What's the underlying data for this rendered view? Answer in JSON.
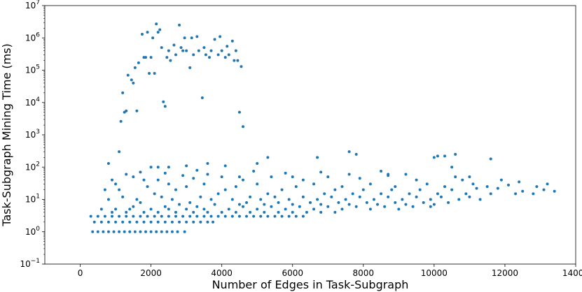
{
  "chart_data": {
    "type": "scatter",
    "title": "",
    "xlabel": "Number of Edges in Task-Subgraph",
    "ylabel": "Task-Subgraph Mining Time (ms)",
    "xlim": [
      -1000,
      14000
    ],
    "ylim": [
      0.1,
      10000000
    ],
    "yscale": "log",
    "xticks": [
      0,
      2000,
      4000,
      6000,
      8000,
      10000,
      12000,
      14000
    ],
    "xtick_labels": [
      "0",
      "2000",
      "4000",
      "6000",
      "8000",
      "10000",
      "12000",
      "14000"
    ],
    "yticks": [
      0.1,
      1,
      10,
      100,
      1000,
      10000,
      100000,
      1000000,
      10000000
    ],
    "ytick_labels": [
      {
        "base": "10",
        "exp": "−1"
      },
      {
        "base": "10",
        "exp": "0"
      },
      {
        "base": "10",
        "exp": "1"
      },
      {
        "base": "10",
        "exp": "2"
      },
      {
        "base": "10",
        "exp": "3"
      },
      {
        "base": "10",
        "exp": "4"
      },
      {
        "base": "10",
        "exp": "5"
      },
      {
        "base": "10",
        "exp": "6"
      },
      {
        "base": "10",
        "exp": "7"
      }
    ],
    "grid": false,
    "legend": "none",
    "marker_color": "#1f77b4",
    "series": [
      {
        "points": [
          [
            300,
            3
          ],
          [
            500,
            3
          ],
          [
            700,
            3
          ],
          [
            900,
            3
          ],
          [
            1100,
            3
          ],
          [
            1300,
            3
          ],
          [
            1500,
            3
          ],
          [
            1700,
            3
          ],
          [
            1900,
            3
          ],
          [
            2100,
            3
          ],
          [
            2300,
            3
          ],
          [
            2500,
            3
          ],
          [
            2700,
            3
          ],
          [
            2900,
            3
          ],
          [
            3100,
            3
          ],
          [
            3300,
            3
          ],
          [
            3500,
            3
          ],
          [
            3700,
            3
          ],
          [
            3900,
            3
          ],
          [
            4100,
            3
          ],
          [
            4300,
            3
          ],
          [
            4500,
            3
          ],
          [
            4700,
            3
          ],
          [
            4900,
            3
          ],
          [
            5100,
            3
          ],
          [
            5300,
            3
          ],
          [
            5500,
            3
          ],
          [
            5700,
            3
          ],
          [
            5900,
            3
          ],
          [
            6100,
            3
          ],
          [
            6300,
            3
          ],
          [
            400,
            2
          ],
          [
            600,
            2
          ],
          [
            800,
            2
          ],
          [
            1000,
            2
          ],
          [
            1200,
            2
          ],
          [
            1400,
            2
          ],
          [
            1600,
            2
          ],
          [
            1800,
            2
          ],
          [
            2000,
            2
          ],
          [
            2200,
            2
          ],
          [
            2400,
            2
          ],
          [
            2600,
            2
          ],
          [
            2800,
            2
          ],
          [
            3000,
            2
          ],
          [
            3200,
            2
          ],
          [
            3400,
            2
          ],
          [
            3600,
            2
          ],
          [
            3750,
            2
          ],
          [
            350,
            1
          ],
          [
            500,
            1
          ],
          [
            650,
            1
          ],
          [
            800,
            1
          ],
          [
            950,
            1
          ],
          [
            1100,
            1
          ],
          [
            1250,
            1
          ],
          [
            1400,
            1
          ],
          [
            1550,
            1
          ],
          [
            1700,
            1
          ],
          [
            1850,
            1
          ],
          [
            2000,
            1
          ],
          [
            2150,
            1
          ],
          [
            2300,
            1
          ],
          [
            2450,
            1
          ],
          [
            2600,
            1
          ],
          [
            2750,
            1
          ],
          [
            2950,
            1
          ],
          [
            900,
            4
          ],
          [
            1300,
            4
          ],
          [
            1800,
            4
          ],
          [
            2200,
            4
          ],
          [
            2700,
            4
          ],
          [
            3200,
            4
          ],
          [
            3600,
            4
          ],
          [
            4000,
            4
          ],
          [
            4400,
            4
          ],
          [
            4800,
            4
          ],
          [
            5200,
            4
          ],
          [
            5600,
            4
          ],
          [
            6000,
            4
          ],
          [
            6400,
            4
          ],
          [
            6800,
            4
          ],
          [
            7200,
            4
          ],
          [
            600,
            5
          ],
          [
            1000,
            5
          ],
          [
            1400,
            5
          ],
          [
            2000,
            5
          ],
          [
            2500,
            5
          ],
          [
            3000,
            5
          ],
          [
            3500,
            5
          ],
          [
            4200,
            5
          ],
          [
            5000,
            5
          ],
          [
            5800,
            5
          ],
          [
            6600,
            5
          ],
          [
            7400,
            5
          ],
          [
            8200,
            5
          ],
          [
            9000,
            5
          ],
          [
            1500,
            6
          ],
          [
            2400,
            6
          ],
          [
            3300,
            6
          ],
          [
            4600,
            6
          ],
          [
            5400,
            6
          ],
          [
            6200,
            6
          ],
          [
            7000,
            6
          ],
          [
            7800,
            6
          ],
          [
            8600,
            6
          ],
          [
            9400,
            6
          ],
          [
            9900,
            6
          ],
          [
            2800,
            7
          ],
          [
            3800,
            7
          ],
          [
            4500,
            7
          ],
          [
            5200,
            7
          ],
          [
            6000,
            7
          ],
          [
            6800,
            7
          ],
          [
            7600,
            7
          ],
          [
            8400,
            7
          ],
          [
            9200,
            7
          ],
          [
            10000,
            7
          ],
          [
            1700,
            8
          ],
          [
            3100,
            8
          ],
          [
            4700,
            8
          ],
          [
            5600,
            8
          ],
          [
            6500,
            8
          ],
          [
            7300,
            8
          ],
          [
            8100,
            8
          ],
          [
            8900,
            8
          ],
          [
            9700,
            8
          ],
          [
            10400,
            8
          ],
          [
            800,
            10
          ],
          [
            1600,
            10
          ],
          [
            2600,
            10
          ],
          [
            3700,
            10
          ],
          [
            4300,
            10
          ],
          [
            5100,
            10
          ],
          [
            5900,
            10
          ],
          [
            6700,
            10
          ],
          [
            7500,
            10
          ],
          [
            8300,
            10
          ],
          [
            9100,
            10
          ],
          [
            9900,
            10
          ],
          [
            10700,
            10
          ],
          [
            11300,
            10
          ],
          [
            1200,
            12
          ],
          [
            2300,
            12
          ],
          [
            3400,
            12
          ],
          [
            4800,
            12
          ],
          [
            5500,
            12
          ],
          [
            6300,
            12
          ],
          [
            7100,
            12
          ],
          [
            7900,
            12
          ],
          [
            8700,
            12
          ],
          [
            9500,
            12
          ],
          [
            10200,
            12
          ],
          [
            11000,
            12
          ],
          [
            2100,
            15
          ],
          [
            3900,
            15
          ],
          [
            5300,
            15
          ],
          [
            6900,
            15
          ],
          [
            7700,
            15
          ],
          [
            8500,
            15
          ],
          [
            9300,
            15
          ],
          [
            10100,
            15
          ],
          [
            10900,
            15
          ],
          [
            11600,
            15
          ],
          [
            12300,
            15
          ],
          [
            12800,
            15
          ],
          [
            13400,
            18
          ],
          [
            1100,
            20
          ],
          [
            2700,
            20
          ],
          [
            4100,
            20
          ],
          [
            5700,
            20
          ],
          [
            7200,
            20
          ],
          [
            8000,
            20
          ],
          [
            8800,
            20
          ],
          [
            9600,
            20
          ],
          [
            10500,
            20
          ],
          [
            11200,
            22
          ],
          [
            11800,
            22
          ],
          [
            12500,
            18
          ],
          [
            13100,
            20
          ],
          [
            1900,
            25
          ],
          [
            3000,
            25
          ],
          [
            4400,
            25
          ],
          [
            6100,
            25
          ],
          [
            7400,
            25
          ],
          [
            8900,
            25
          ],
          [
            10300,
            25
          ],
          [
            11500,
            25
          ],
          [
            12100,
            28
          ],
          [
            12900,
            25
          ],
          [
            1000,
            30
          ],
          [
            2500,
            30
          ],
          [
            3500,
            30
          ],
          [
            5000,
            30
          ],
          [
            6600,
            30
          ],
          [
            8200,
            30
          ],
          [
            9800,
            30
          ],
          [
            11100,
            30
          ],
          [
            12400,
            35
          ],
          [
            13200,
            30
          ],
          [
            900,
            40
          ],
          [
            1800,
            40
          ],
          [
            2200,
            40
          ],
          [
            3200,
            45
          ],
          [
            4600,
            40
          ],
          [
            6300,
            40
          ],
          [
            7900,
            45
          ],
          [
            9500,
            40
          ],
          [
            10800,
            40
          ],
          [
            11900,
            40
          ],
          [
            700,
            20
          ],
          [
            1500,
            50
          ],
          [
            2900,
            55
          ],
          [
            4000,
            50
          ],
          [
            5400,
            50
          ],
          [
            7000,
            50
          ],
          [
            8700,
            55
          ],
          [
            10600,
            50
          ],
          [
            1300,
            60
          ],
          [
            2400,
            65
          ],
          [
            3600,
            60
          ],
          [
            5800,
            65
          ],
          [
            7600,
            60
          ],
          [
            9200,
            60
          ],
          [
            1700,
            70
          ],
          [
            3300,
            80
          ],
          [
            4900,
            75
          ],
          [
            6800,
            70
          ],
          [
            8500,
            75
          ],
          [
            800,
            130
          ],
          [
            1100,
            300
          ],
          [
            2000,
            100
          ],
          [
            2500,
            100
          ],
          [
            3000,
            110
          ],
          [
            3600,
            130
          ],
          [
            4100,
            110
          ],
          [
            5000,
            130
          ],
          [
            5300,
            200
          ],
          [
            6700,
            200
          ],
          [
            7600,
            300
          ],
          [
            7800,
            250
          ],
          [
            10000,
            200
          ],
          [
            10100,
            220
          ],
          [
            10300,
            220
          ],
          [
            10600,
            250
          ],
          [
            11600,
            180
          ],
          [
            10500,
            100
          ],
          [
            11000,
            50
          ],
          [
            8700,
            60
          ],
          [
            6000,
            50
          ],
          [
            4500,
            50
          ],
          [
            2200,
            100
          ],
          [
            1150,
            2600
          ],
          [
            1200,
            20000
          ],
          [
            1250,
            5000
          ],
          [
            1300,
            5500
          ],
          [
            1350,
            70000
          ],
          [
            1450,
            50000
          ],
          [
            1500,
            40000
          ],
          [
            1550,
            120000
          ],
          [
            1600,
            5500
          ],
          [
            1650,
            170000
          ],
          [
            1750,
            1300000
          ],
          [
            1800,
            250000
          ],
          [
            1850,
            250000
          ],
          [
            1900,
            1500000
          ],
          [
            1950,
            80000
          ],
          [
            2000,
            250000
          ],
          [
            2050,
            1000000
          ],
          [
            2100,
            80000
          ],
          [
            2150,
            2700000
          ],
          [
            2200,
            1500000
          ],
          [
            2250,
            1800000
          ],
          [
            2300,
            500000
          ],
          [
            2350,
            10500
          ],
          [
            2400,
            7600
          ],
          [
            2450,
            250000
          ],
          [
            2500,
            400000
          ],
          [
            2550,
            200000
          ],
          [
            2650,
            600000
          ],
          [
            2700,
            300000
          ],
          [
            2800,
            2500000
          ],
          [
            2850,
            500000
          ],
          [
            2900,
            400000
          ],
          [
            2950,
            1000000
          ],
          [
            3000,
            400000
          ],
          [
            3100,
            120000
          ],
          [
            3150,
            1000000
          ],
          [
            3200,
            300000
          ],
          [
            3300,
            1100000
          ],
          [
            3350,
            400000
          ],
          [
            3450,
            14000
          ],
          [
            3500,
            500000
          ],
          [
            3550,
            300000
          ],
          [
            3650,
            250000
          ],
          [
            3700,
            400000
          ],
          [
            3800,
            900000
          ],
          [
            3900,
            300000
          ],
          [
            3950,
            1100000
          ],
          [
            4000,
            400000
          ],
          [
            4100,
            250000
          ],
          [
            4150,
            550000
          ],
          [
            4200,
            300000
          ],
          [
            4300,
            800000
          ],
          [
            4350,
            200000
          ],
          [
            4400,
            400000
          ],
          [
            4450,
            200000
          ],
          [
            4500,
            5000
          ],
          [
            4550,
            130000
          ],
          [
            4600,
            1800
          ]
        ]
      }
    ]
  }
}
